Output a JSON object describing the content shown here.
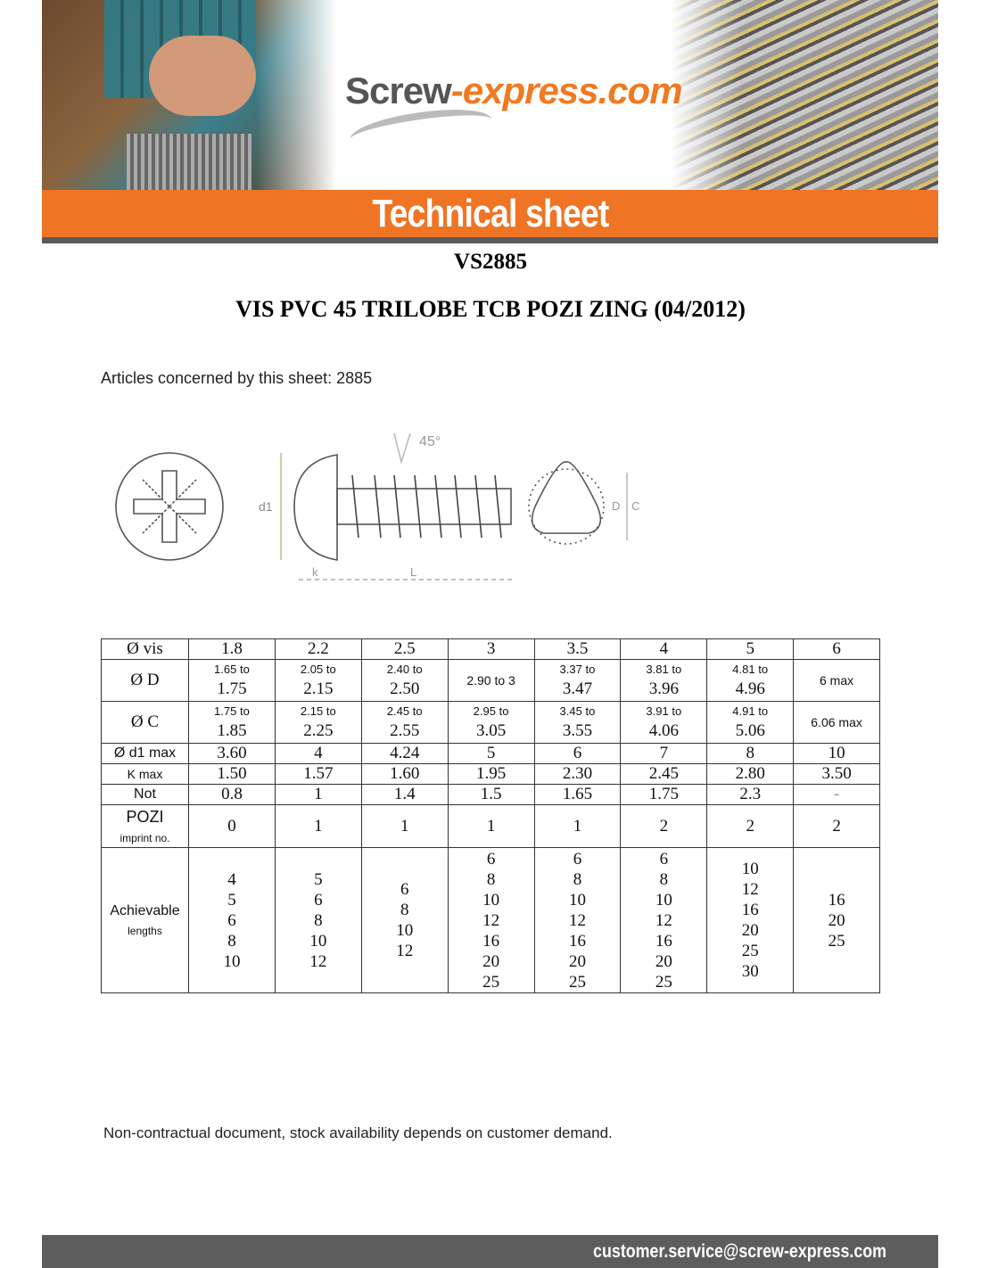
{
  "header": {
    "logo_part1": "Screw",
    "logo_part2": "-express.com",
    "banner_title": "Technical sheet",
    "accent_color": "#ef7424"
  },
  "reference": "VS2885",
  "title": "VIS PVC 45 TRILOBE TCB POZI ZING (04/2012)",
  "articles": "Articles concerned by this sheet: 2885",
  "drawing": {
    "angle_label": "45°",
    "d1_label": "d1",
    "k_label": "k",
    "l_label": "L",
    "d_label": "D",
    "c_label": "C"
  },
  "table": {
    "columns": [
      "1.8",
      "2.2",
      "2.5",
      "3",
      "3.5",
      "4",
      "5",
      "6"
    ],
    "rows": [
      {
        "label": "Ø vis",
        "type": "header"
      },
      {
        "label": "Ø D",
        "type": "range",
        "cells": [
          [
            "1.65 to",
            "1.75"
          ],
          [
            "2.05 to",
            "2.15"
          ],
          [
            "2.40 to",
            "2.50"
          ],
          [
            "2.90 to 3"
          ],
          [
            "3.37 to",
            "3.47"
          ],
          [
            "3.81 to",
            "3.96"
          ],
          [
            "4.81 to",
            "4.96"
          ],
          [
            "6 max"
          ]
        ]
      },
      {
        "label": "Ø C",
        "type": "range",
        "cells": [
          [
            "1.75 to",
            "1.85"
          ],
          [
            "2.15 to",
            "2.25"
          ],
          [
            "2.45 to",
            "2.55"
          ],
          [
            "2.95 to",
            "3.05"
          ],
          [
            "3.45 to",
            "3.55"
          ],
          [
            "3.91 to",
            "4.06"
          ],
          [
            "4.91 to",
            "5.06"
          ],
          [
            "6.06 max"
          ]
        ]
      },
      {
        "label": "Ø d1 max",
        "type": "plain",
        "cells": [
          "3.60",
          "4",
          "4.24",
          "5",
          "6",
          "7",
          "8",
          "10"
        ]
      },
      {
        "label": "K max",
        "type": "plain",
        "cells": [
          "1.50",
          "1.57",
          "1.60",
          "1.95",
          "2.30",
          "2.45",
          "2.80",
          "3.50"
        ]
      },
      {
        "label": "Not",
        "type": "plain",
        "cells": [
          "0.8",
          "1",
          "1.4",
          "1.5",
          "1.65",
          "1.75",
          "2.3",
          "-"
        ]
      },
      {
        "label": "POZI",
        "sublabel": "imprint no.",
        "type": "plain",
        "cells": [
          "0",
          "1",
          "1",
          "1",
          "1",
          "2",
          "2",
          "2"
        ]
      },
      {
        "label": "Achievable",
        "sublabel": "lengths",
        "type": "list",
        "cells": [
          [
            "4",
            "5",
            "6",
            "8",
            "10"
          ],
          [
            "5",
            "6",
            "8",
            "10",
            "12"
          ],
          [
            "6",
            "8",
            "10",
            "12"
          ],
          [
            "6",
            "8",
            "10",
            "12",
            "16",
            "20",
            "25"
          ],
          [
            "6",
            "8",
            "10",
            "12",
            "16",
            "20",
            "25"
          ],
          [
            "6",
            "8",
            "10",
            "12",
            "16",
            "20",
            "25"
          ],
          [
            "10",
            "12",
            "16",
            "20",
            "25",
            "30"
          ],
          [
            "16",
            "20",
            "25"
          ]
        ]
      }
    ]
  },
  "note": "Non-contractual document, stock availability depends on customer demand.",
  "footer": {
    "email": "customer.service@screw-express.com"
  }
}
